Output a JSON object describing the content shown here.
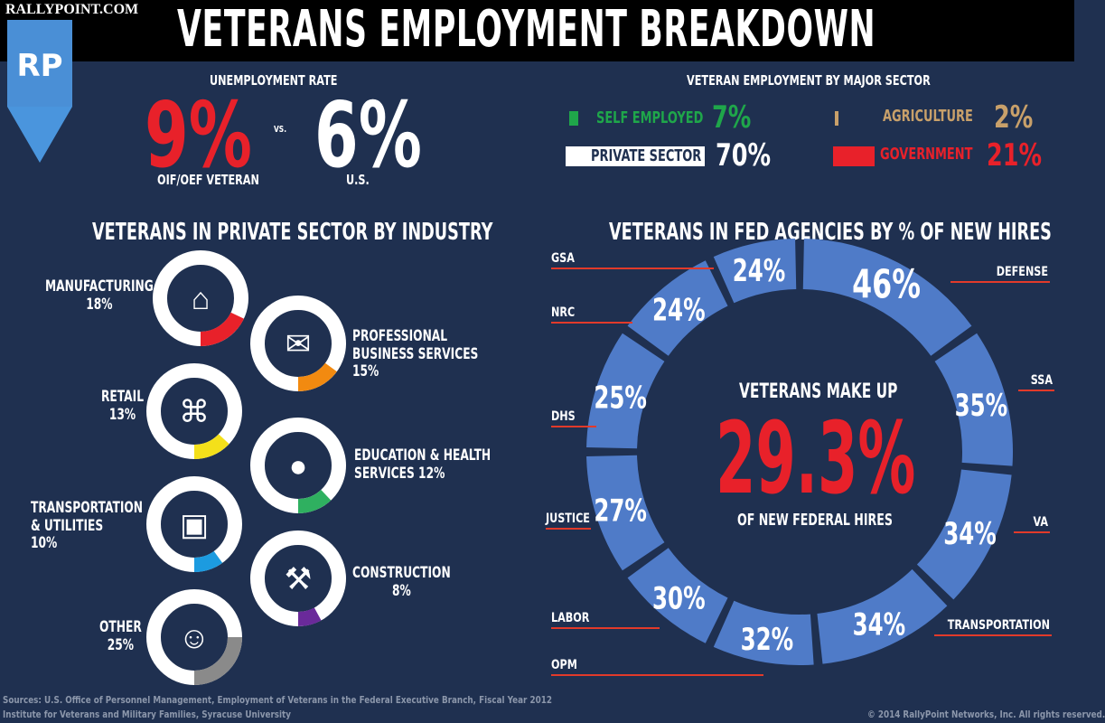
{
  "site": "RALLYPOINT.COM",
  "logo": "RP",
  "title": "VETERANS EMPLOYMENT BREAKDOWN",
  "unemployment": {
    "heading": "UNEMPLOYMENT RATE",
    "vet_value": "9%",
    "vet_label": "OIF/OEF VETERAN",
    "vs": "VS.",
    "us_value": "6%",
    "us_label": "U.S."
  },
  "sector": {
    "heading": "VETERAN EMPLOYMENT BY MAJOR SECTOR",
    "items": [
      {
        "label": "SELF EMPLOYED",
        "value": "7%",
        "color": "#1fa64a"
      },
      {
        "label": "AGRICULTURE",
        "value": "2%",
        "color": "#c8a06a"
      },
      {
        "label": "PRIVATE SECTOR",
        "value": "70%",
        "color": "#ffffff"
      },
      {
        "label": "GOVERNMENT",
        "value": "21%",
        "color": "#e8212a"
      }
    ]
  },
  "industry": {
    "heading": "VETERANS IN PRIVATE SECTOR BY INDUSTRY",
    "items": [
      {
        "label": "MANUFACTURING",
        "value": "18%",
        "pct": 18,
        "color": "#e8212a",
        "icon": "factory-icon"
      },
      {
        "label": "PROFESSIONAL BUSINESS SERVICES 15%",
        "pct": 15,
        "color": "#f28a10",
        "icon": "briefcase-icon"
      },
      {
        "label": "RETAIL",
        "value": "13%",
        "pct": 13,
        "color": "#f4e01a",
        "icon": "shopping-cart-icon"
      },
      {
        "label": "EDUCATION & HEALTH SERVICES 12%",
        "pct": 12,
        "color": "#2fb060",
        "icon": "apple-icon"
      },
      {
        "label": "TRANSPORTATION & UTILITIES",
        "value": "10%",
        "pct": 10,
        "color": "#1c9be0",
        "icon": "car-icon"
      },
      {
        "label": "CONSTRUCTION",
        "value": "8%",
        "pct": 8,
        "color": "#6a2a9a",
        "icon": "worker-icon"
      },
      {
        "label": "OTHER",
        "value": "25%",
        "pct": 25,
        "color": "#8a8a8a",
        "icon": "person-icon"
      }
    ]
  },
  "fed": {
    "heading": "VETERANS IN FED AGENCIES BY % OF NEW HIRES",
    "center_top": "VETERANS MAKE UP",
    "center_value": "29.3%",
    "center_bottom": "OF NEW FEDERAL HIRES",
    "segment_color": "#4f7bc8",
    "agencies": [
      {
        "label": "DEFENSE",
        "value": "46%"
      },
      {
        "label": "SSA",
        "value": "35%"
      },
      {
        "label": "VA",
        "value": "34%"
      },
      {
        "label": "TRANSPORTATION",
        "value": "34%"
      },
      {
        "label": "OPM",
        "value": "32%"
      },
      {
        "label": "LABOR",
        "value": "30%"
      },
      {
        "label": "JUSTICE",
        "value": "27%"
      },
      {
        "label": "DHS",
        "value": "25%"
      },
      {
        "label": "NRC",
        "value": "24%"
      },
      {
        "label": "GSA",
        "value": "24%"
      }
    ]
  },
  "footer": {
    "sources1": "Sources: U.S. Office of Personnel Management, Employment of Veterans in the Federal Executive Branch, Fiscal Year 2012",
    "sources2": "Institute for Veterans and Military Families, Syracuse University",
    "copyright": "© 2014 RallyPoint Networks, Inc. All rights reserved."
  }
}
